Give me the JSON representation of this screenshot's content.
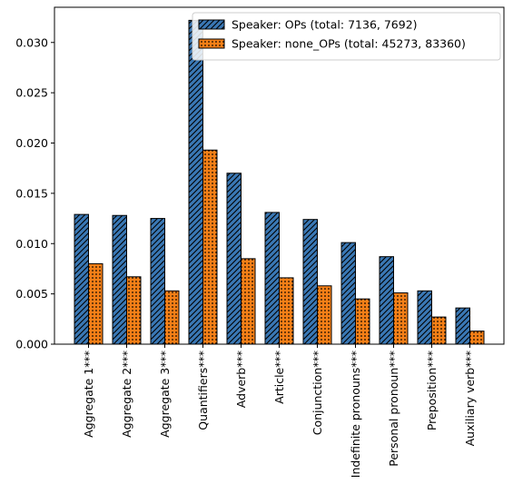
{
  "chart_data": {
    "type": "bar",
    "categories": [
      "Aggregate 1***",
      "Aggregate 2***",
      "Aggregate 3***",
      "Quantifiers***",
      "Adverb***",
      "Article***",
      "Conjunction***",
      "Indefinite pronouns***",
      "Personal pronoun***",
      "Preposition***",
      "Auxiliary verb***"
    ],
    "series": [
      {
        "name": "Speaker: OPs (total: 7136, 7692)",
        "color": "#3a78b5",
        "hatch": "diagonal",
        "values": [
          0.0129,
          0.0128,
          0.0125,
          0.0322,
          0.017,
          0.0131,
          0.0124,
          0.0101,
          0.0087,
          0.0053,
          0.0036
        ]
      },
      {
        "name": "Speaker: none_OPs (total: 45273, 83360)",
        "color": "#f57f17",
        "hatch": "dots",
        "values": [
          0.008,
          0.0067,
          0.0053,
          0.0193,
          0.0085,
          0.0066,
          0.0058,
          0.0045,
          0.0051,
          0.0027,
          0.0013
        ]
      }
    ],
    "ylim": [
      0,
      0.0335
    ],
    "yticks": [
      "0.000",
      "0.005",
      "0.010",
      "0.015",
      "0.020",
      "0.025",
      "0.030"
    ],
    "title": "",
    "xlabel": "",
    "ylabel": "",
    "grid": false,
    "legend": "top-right"
  }
}
